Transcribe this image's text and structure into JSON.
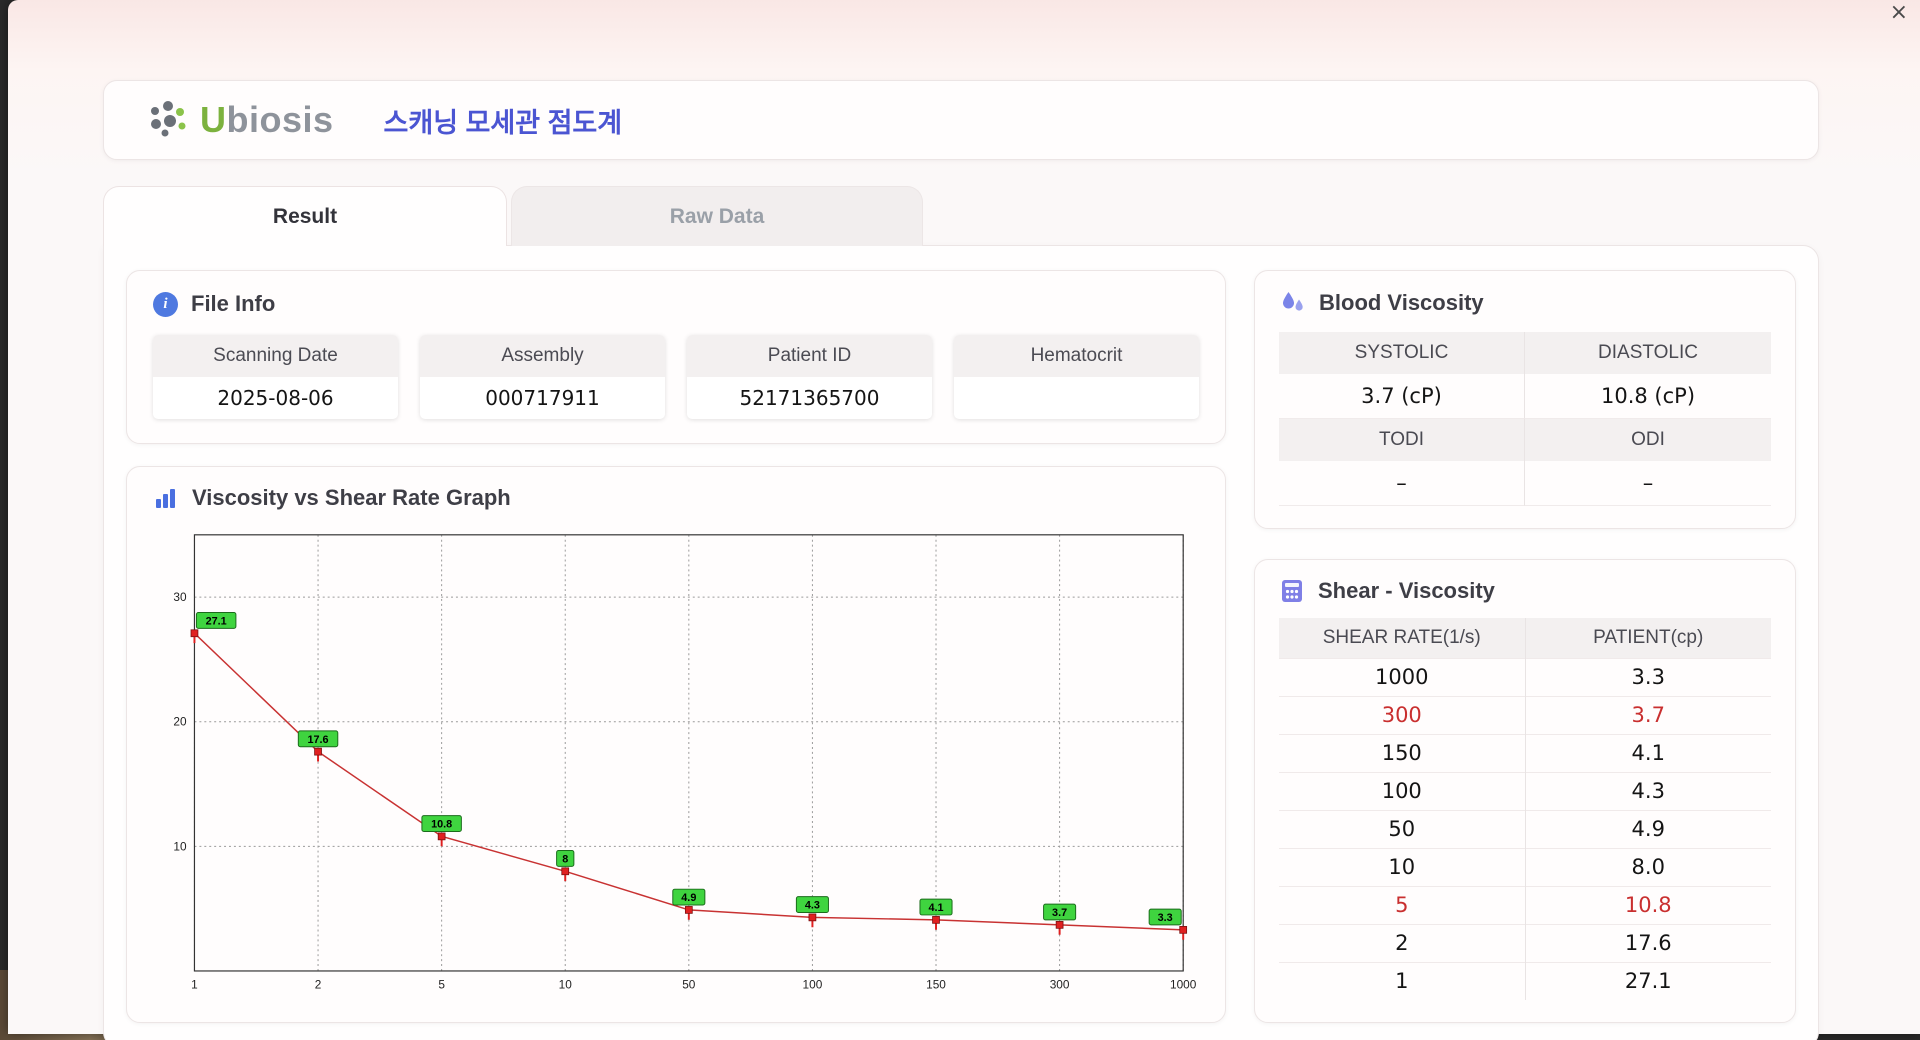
{
  "window": {
    "close_glyph": "×"
  },
  "header": {
    "brand_initial": "U",
    "brand_rest": "biosis",
    "title": "스캐닝 모세관 점도계"
  },
  "tabs": {
    "result": "Result",
    "raw_data": "Raw Data"
  },
  "file_info": {
    "title": "File Info",
    "fields": [
      {
        "label": "Scanning Date",
        "value": "2025-08-06"
      },
      {
        "label": "Assembly",
        "value": "000717911"
      },
      {
        "label": "Patient ID",
        "value": "52171365700"
      },
      {
        "label": "Hematocrit",
        "value": ""
      }
    ]
  },
  "blood_viscosity": {
    "title": "Blood Viscosity",
    "row1": [
      {
        "label": "SYSTOLIC",
        "value": "3.7 (cP)"
      },
      {
        "label": "DIASTOLIC",
        "value": "10.8 (cP)"
      }
    ],
    "row2": [
      {
        "label": "TODI",
        "value": "–"
      },
      {
        "label": "ODI",
        "value": "–"
      }
    ]
  },
  "shear_viscosity": {
    "title": "Shear - Viscosity",
    "columns": [
      "SHEAR RATE(1/s)",
      "PATIENT(cp)"
    ],
    "rows": [
      {
        "shear": "1000",
        "patient": "3.3",
        "highlight": false
      },
      {
        "shear": "300",
        "patient": "3.7",
        "highlight": true
      },
      {
        "shear": "150",
        "patient": "4.1",
        "highlight": false
      },
      {
        "shear": "100",
        "patient": "4.3",
        "highlight": false
      },
      {
        "shear": "50",
        "patient": "4.9",
        "highlight": false
      },
      {
        "shear": "10",
        "patient": "8.0",
        "highlight": false
      },
      {
        "shear": "5",
        "patient": "10.8",
        "highlight": true
      },
      {
        "shear": "2",
        "patient": "17.6",
        "highlight": false
      },
      {
        "shear": "1",
        "patient": "27.1",
        "highlight": false
      }
    ]
  },
  "graph": {
    "title": "Viscosity vs Shear Rate Graph"
  },
  "chart_data": {
    "type": "line",
    "title": "Viscosity vs Shear Rate Graph",
    "x_axis_type": "category",
    "categories": [
      "1",
      "2",
      "5",
      "10",
      "50",
      "100",
      "150",
      "300",
      "1000"
    ],
    "values": [
      27.1,
      17.6,
      10.8,
      8,
      4.9,
      4.3,
      4.1,
      3.7,
      3.3
    ],
    "point_labels": [
      "27.1",
      "17.6",
      "10.8",
      "8",
      "4.9",
      "4.3",
      "4.1",
      "3.7",
      "3.3"
    ],
    "xlabel": "",
    "ylabel": "",
    "ylim": [
      0,
      35
    ],
    "yticks": [
      10,
      20,
      30
    ],
    "grid": true,
    "legend": false,
    "line_color": "#c83232",
    "marker_color": "#e02020",
    "point_label_bg": "#3fd43f",
    "point_label_border": "#1b6b1b"
  }
}
